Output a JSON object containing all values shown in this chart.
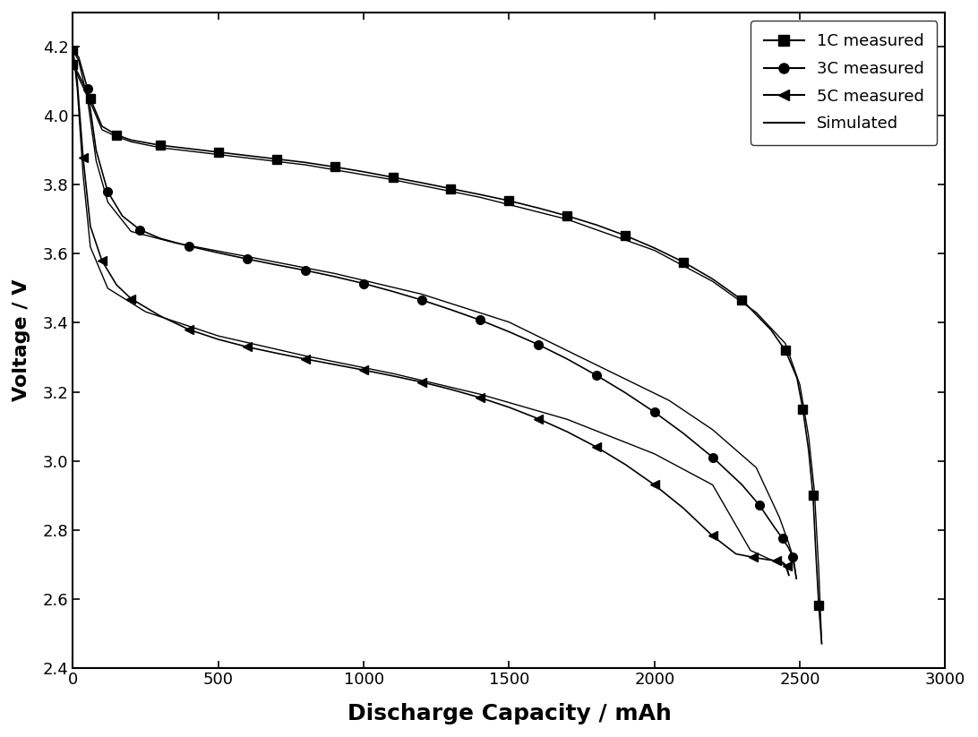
{
  "xlabel": "Discharge Capacity / mAh",
  "ylabel": "Voltage / V",
  "xlim": [
    0,
    3000
  ],
  "ylim": [
    2.4,
    4.3
  ],
  "xticks": [
    0,
    500,
    1000,
    1500,
    2000,
    2500,
    3000
  ],
  "yticks": [
    2.4,
    2.6,
    2.8,
    3.0,
    3.2,
    3.4,
    3.6,
    3.8,
    4.0,
    4.2
  ],
  "curve_1C_meas": {
    "x": [
      0,
      20,
      60,
      100,
      150,
      200,
      300,
      400,
      500,
      600,
      700,
      800,
      900,
      1000,
      1100,
      1200,
      1300,
      1400,
      1500,
      1600,
      1700,
      1800,
      1900,
      2000,
      2100,
      2200,
      2300,
      2400,
      2450,
      2490,
      2510,
      2530,
      2545,
      2555,
      2565,
      2575
    ],
    "y": [
      4.15,
      4.12,
      4.05,
      3.97,
      3.945,
      3.93,
      3.915,
      3.905,
      3.895,
      3.885,
      3.875,
      3.865,
      3.852,
      3.838,
      3.822,
      3.806,
      3.789,
      3.772,
      3.754,
      3.733,
      3.71,
      3.684,
      3.653,
      3.617,
      3.576,
      3.527,
      3.467,
      3.38,
      3.32,
      3.24,
      3.15,
      3.03,
      2.9,
      2.73,
      2.58,
      2.47
    ]
  },
  "curve_3C_meas": {
    "x": [
      0,
      20,
      50,
      80,
      120,
      170,
      230,
      300,
      400,
      500,
      600,
      700,
      800,
      900,
      1000,
      1100,
      1200,
      1300,
      1400,
      1500,
      1600,
      1700,
      1800,
      1900,
      2000,
      2100,
      2200,
      2300,
      2360,
      2410,
      2440,
      2460,
      2475,
      2488
    ],
    "y": [
      4.19,
      4.17,
      4.08,
      3.9,
      3.78,
      3.71,
      3.67,
      3.645,
      3.622,
      3.603,
      3.585,
      3.568,
      3.552,
      3.534,
      3.514,
      3.491,
      3.466,
      3.438,
      3.408,
      3.374,
      3.337,
      3.295,
      3.248,
      3.197,
      3.141,
      3.079,
      3.01,
      2.931,
      2.872,
      2.81,
      2.775,
      2.749,
      2.722,
      2.658
    ]
  },
  "curve_5C_meas": {
    "x": [
      0,
      15,
      35,
      60,
      100,
      150,
      200,
      300,
      400,
      500,
      600,
      700,
      800,
      900,
      1000,
      1100,
      1200,
      1300,
      1400,
      1500,
      1600,
      1700,
      1800,
      1900,
      2000,
      2100,
      2200,
      2280,
      2340,
      2390,
      2420,
      2440,
      2455,
      2462
    ],
    "y": [
      4.19,
      4.1,
      3.88,
      3.68,
      3.58,
      3.51,
      3.47,
      3.42,
      3.38,
      3.352,
      3.33,
      3.312,
      3.295,
      3.279,
      3.263,
      3.246,
      3.228,
      3.207,
      3.183,
      3.155,
      3.122,
      3.084,
      3.04,
      2.989,
      2.93,
      2.862,
      2.782,
      2.73,
      2.72,
      2.713,
      2.71,
      2.706,
      2.695,
      2.668
    ]
  },
  "curve_1C_sim": {
    "x": [
      0,
      20,
      60,
      100,
      150,
      200,
      300,
      500,
      800,
      1100,
      1400,
      1700,
      2000,
      2200,
      2350,
      2450,
      2500,
      2530,
      2550,
      2565,
      2575
    ],
    "y": [
      4.15,
      4.11,
      4.04,
      3.96,
      3.94,
      3.925,
      3.908,
      3.888,
      3.858,
      3.815,
      3.764,
      3.7,
      3.61,
      3.52,
      3.43,
      3.34,
      3.22,
      3.07,
      2.91,
      2.68,
      2.47
    ]
  },
  "curve_3C_sim": {
    "x": [
      0,
      20,
      50,
      80,
      120,
      200,
      350,
      600,
      900,
      1200,
      1500,
      1800,
      2050,
      2200,
      2350,
      2430,
      2460,
      2478,
      2488
    ],
    "y": [
      4.19,
      4.16,
      4.05,
      3.87,
      3.75,
      3.665,
      3.632,
      3.592,
      3.543,
      3.483,
      3.402,
      3.278,
      3.175,
      3.09,
      2.98,
      2.835,
      2.764,
      2.718,
      2.658
    ]
  },
  "curve_5C_sim": {
    "x": [
      0,
      15,
      35,
      60,
      120,
      250,
      500,
      800,
      1100,
      1400,
      1700,
      2000,
      2200,
      2330,
      2400,
      2430,
      2450,
      2462
    ],
    "y": [
      4.19,
      4.08,
      3.83,
      3.62,
      3.5,
      3.432,
      3.362,
      3.304,
      3.253,
      3.193,
      3.12,
      3.02,
      2.93,
      2.74,
      2.713,
      2.706,
      2.695,
      2.668
    ]
  }
}
